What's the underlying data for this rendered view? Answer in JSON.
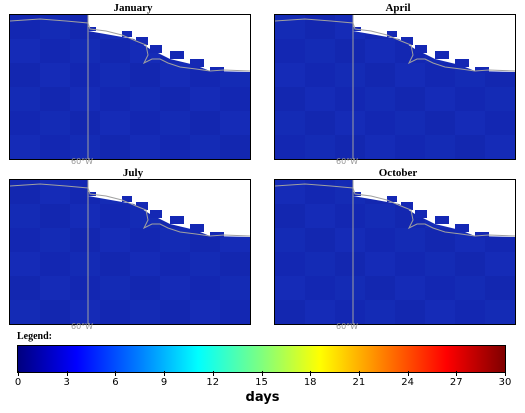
{
  "panels": [
    {
      "month": "January",
      "lon_label": "60°W",
      "fill_color": "#1428b4"
    },
    {
      "month": "April",
      "lon_label": "60°W",
      "fill_color": "#1428b4"
    },
    {
      "month": "July",
      "lon_label": "60°W",
      "fill_color": "#1428b4"
    },
    {
      "month": "October",
      "lon_label": "60°W",
      "fill_color": "#1428b4"
    }
  ],
  "legend": {
    "title": "Legend:",
    "unit": "days",
    "min": 0,
    "max": 30,
    "ticks": [
      "0",
      "3",
      "6",
      "9",
      "12",
      "15",
      "18",
      "21",
      "24",
      "27",
      "30"
    ],
    "colormap": "jet"
  },
  "colors": {
    "ocean": "#ffffff",
    "coastline": "#a0a0a0",
    "meridian": "#a0a0a0"
  }
}
